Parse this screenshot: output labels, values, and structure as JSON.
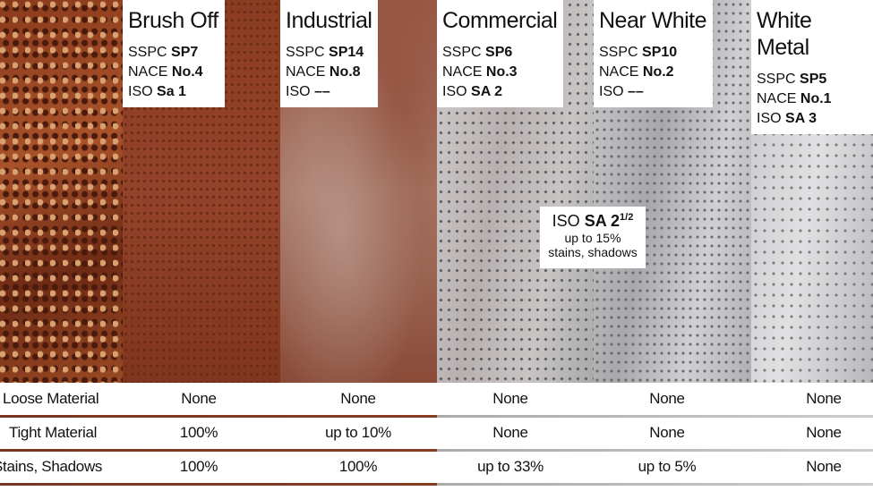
{
  "columns": [
    {
      "title": "Brush Off",
      "sspc": "SP7",
      "nace": "No.4",
      "iso": "Sa 1"
    },
    {
      "title": "Industrial",
      "sspc": "SP14",
      "nace": "No.8",
      "iso": "––"
    },
    {
      "title": "Commercial",
      "sspc": "SP6",
      "nace": "No.3",
      "iso": "SA 2"
    },
    {
      "title": "Near White",
      "sspc": "SP10",
      "nace": "No.2",
      "iso": "––"
    },
    {
      "title": "White Metal",
      "sspc": "SP5",
      "nace": "No.1",
      "iso": "SA 3"
    }
  ],
  "prefix": {
    "sspc": "SSPC",
    "nace": "NACE",
    "iso": "ISO"
  },
  "callout": {
    "iso": "ISO",
    "grade": "SA 2",
    "sup": "1/2",
    "line1": "up to 15%",
    "line2": "stains, shadows"
  },
  "rows": [
    {
      "label": "Loose Material",
      "values": [
        "None",
        "None",
        "None",
        "None",
        "None"
      ]
    },
    {
      "label": "Tight Material",
      "values": [
        "100%",
        "up to 10%",
        "None",
        "None",
        "None"
      ]
    },
    {
      "label": "Stains, Shadows",
      "values": [
        "100%",
        "100%",
        "up to 33%",
        "up to 5%",
        "None"
      ]
    }
  ]
}
